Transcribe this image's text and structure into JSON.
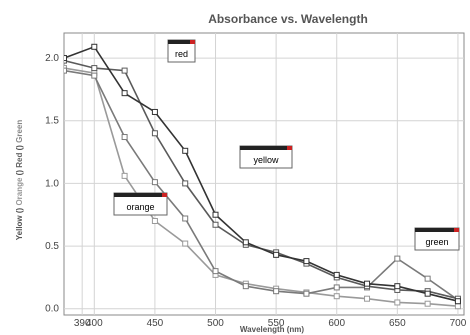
{
  "chart_data": {
    "type": "line",
    "title": "Absorbance vs. Wavelength",
    "xlabel": "Wavelength (nm)",
    "ylabel_parts": [
      {
        "text": "Yellow",
        "color": "#555555"
      },
      {
        "text": "()",
        "color": "#555555"
      },
      {
        "text": "Orange",
        "color": "#999999"
      },
      {
        "text": "()",
        "color": "#555555"
      },
      {
        "text": "Red",
        "color": "#666666"
      },
      {
        "text": "()",
        "color": "#555555"
      },
      {
        "text": "Green",
        "color": "#888888"
      }
    ],
    "xlim": [
      375,
      705
    ],
    "ylim": [
      -0.05,
      2.2
    ],
    "x_ticks": [
      "390",
      "400",
      "450",
      "500",
      "550",
      "600",
      "650",
      "700"
    ],
    "y_ticks": [
      "0.0",
      "0.5",
      "1.0",
      "1.5",
      "2.0"
    ],
    "x": [
      350,
      375,
      400,
      425,
      450,
      475,
      500,
      525,
      550,
      575,
      600,
      625,
      650,
      675,
      700
    ],
    "series": [
      {
        "name": "red",
        "color": "#333333",
        "values": [
          1.92,
          2.0,
          2.09,
          1.72,
          1.57,
          1.26,
          0.75,
          0.53,
          0.43,
          0.38,
          0.27,
          0.2,
          0.18,
          0.12,
          0.06
        ]
      },
      {
        "name": "yellow",
        "color": "#5a5a5a",
        "values": [
          1.95,
          1.98,
          1.92,
          1.9,
          1.4,
          1.0,
          0.67,
          0.51,
          0.45,
          0.36,
          0.25,
          0.18,
          0.15,
          0.14,
          0.08
        ]
      },
      {
        "name": "orange",
        "color": "#9a9a9a",
        "values": [
          1.86,
          1.92,
          1.88,
          1.06,
          0.7,
          0.52,
          0.27,
          0.2,
          0.16,
          0.13,
          0.1,
          0.08,
          0.05,
          0.04,
          0.02
        ]
      },
      {
        "name": "green",
        "color": "#7a7a7a",
        "values": [
          1.97,
          1.9,
          1.86,
          1.37,
          1.01,
          0.72,
          0.3,
          0.18,
          0.14,
          0.12,
          0.17,
          0.17,
          0.4,
          0.24,
          0.07
        ]
      }
    ],
    "callouts": [
      {
        "series": "red",
        "label": "red"
      },
      {
        "series": "yellow",
        "label": "yellow"
      },
      {
        "series": "orange",
        "label": "orange"
      },
      {
        "series": "green",
        "label": "green"
      }
    ],
    "grid": true
  }
}
